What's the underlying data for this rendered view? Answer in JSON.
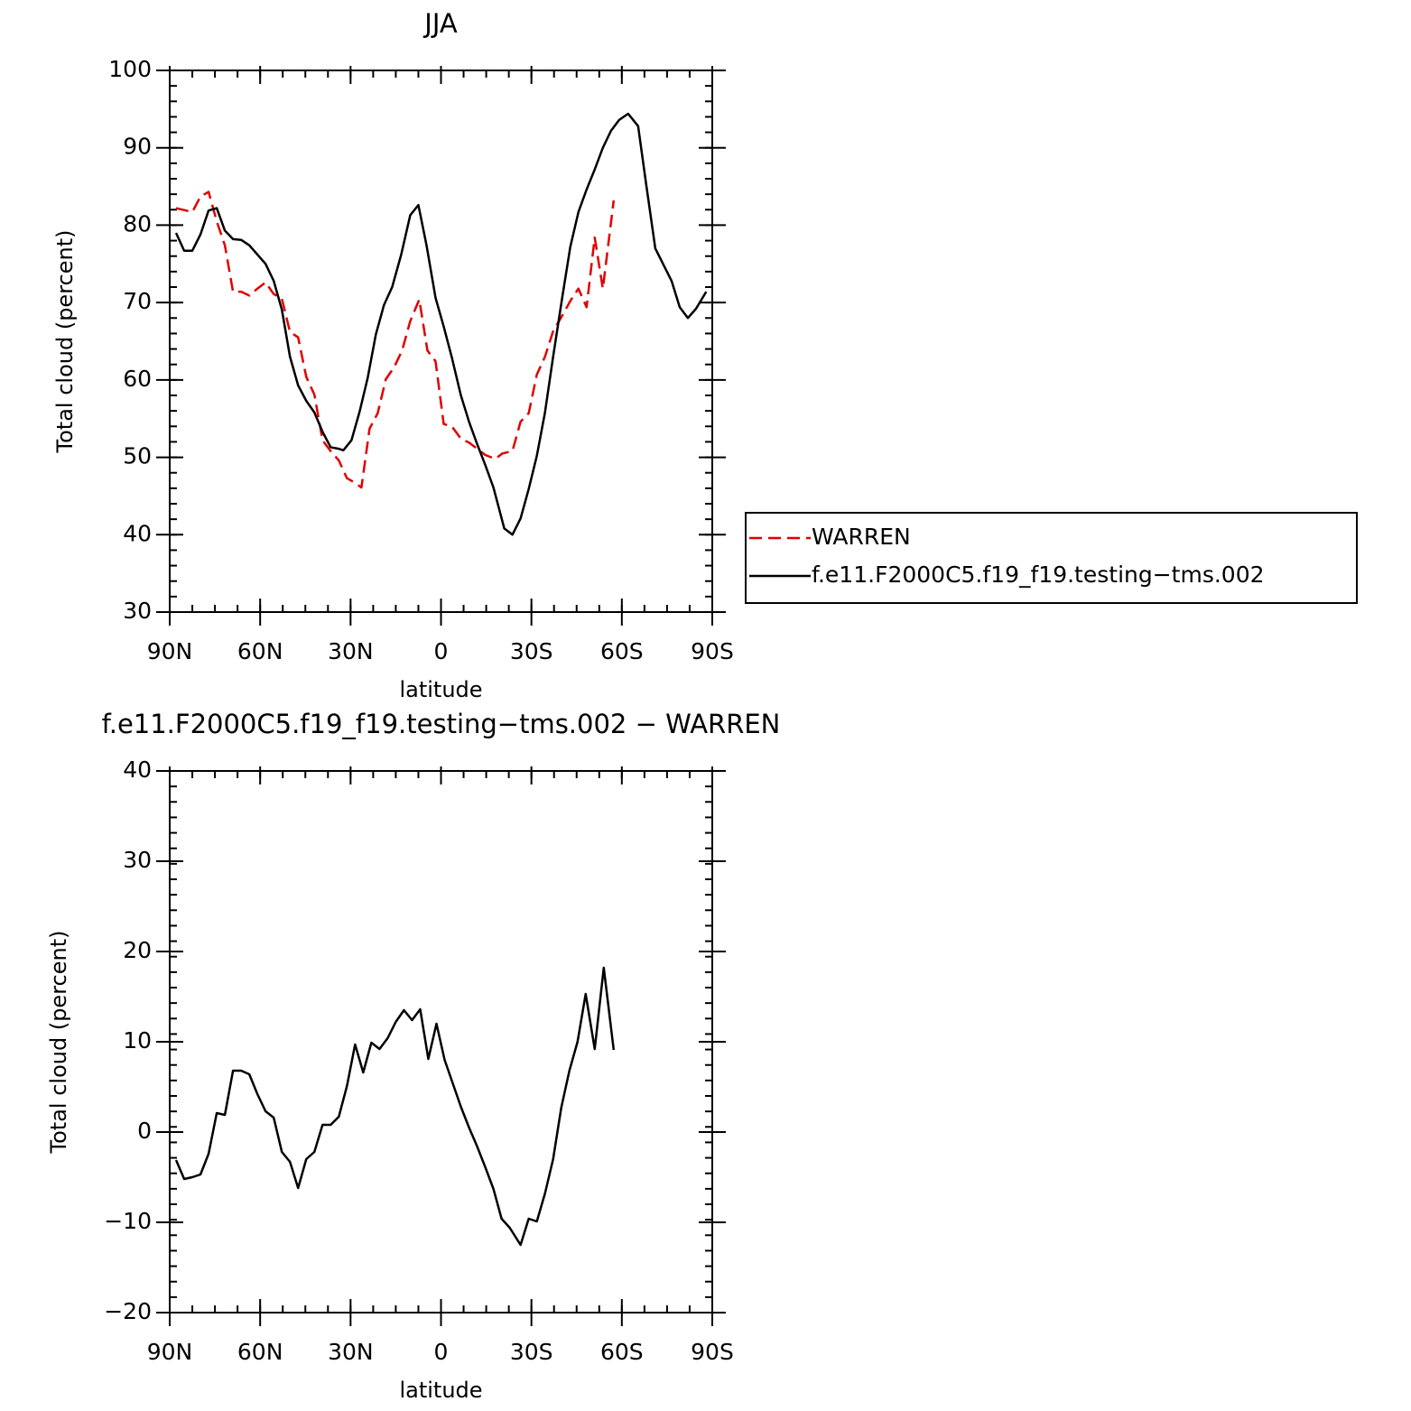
{
  "chart_data": [
    {
      "type": "line",
      "title": "JJA",
      "xlabel": "latitude",
      "ylabel": "Total cloud (percent)",
      "xlim": [
        90,
        -90
      ],
      "ylim": [
        30,
        100
      ],
      "xticks": [
        {
          "value": 90,
          "label": "90N"
        },
        {
          "value": 60,
          "label": "60N"
        },
        {
          "value": 30,
          "label": "30N"
        },
        0,
        {
          "value": -30,
          "label": "30S"
        },
        {
          "value": -60,
          "label": "60S"
        },
        {
          "value": -90,
          "label": "90S"
        }
      ],
      "yticks": [
        30,
        40,
        50,
        60,
        70,
        80,
        90,
        100
      ],
      "legend": "right",
      "series": [
        {
          "name": "WARREN",
          "color": "#e00000",
          "dash": true,
          "x": [
            87.9,
            82.5,
            79.8,
            77.1,
            74.4,
            71.7,
            69.0,
            66.3,
            63.6,
            60.9,
            58.2,
            55.5,
            52.8,
            50.1,
            47.4,
            44.7,
            42.0,
            39.3,
            36.6,
            33.9,
            31.2,
            28.5,
            26.4,
            23.7,
            21.0,
            18.3,
            15.6,
            12.9,
            10.2,
            7.2,
            4.5,
            1.8,
            -0.9,
            -3.6,
            -6.6,
            -9.3,
            -12.0,
            -14.7,
            -18.0,
            -20.4,
            -23.7,
            -26.4,
            -29.1,
            -31.8,
            -34.5,
            -37.2,
            -40.2,
            -42.9,
            -45.6,
            -48.3,
            -51.0,
            -53.7,
            -57.3
          ],
          "values": [
            82.2,
            81.7,
            83.7,
            84.3,
            80.5,
            77.4,
            71.4,
            71.4,
            70.9,
            71.8,
            72.6,
            71.1,
            70.5,
            66.2,
            65.5,
            60.4,
            58.1,
            52.2,
            50.8,
            49.6,
            47.3,
            46.7,
            46.1,
            53.7,
            55.7,
            60.1,
            61.6,
            63.8,
            67.6,
            70.4,
            63.8,
            62.4,
            54.3,
            54.0,
            52.4,
            51.9,
            51.1,
            50.3,
            49.8,
            50.5,
            50.8,
            54.6,
            55.7,
            60.7,
            63.0,
            66.3,
            68.3,
            70.2,
            71.8,
            69.4,
            78.4,
            71.8,
            83.2
          ]
        },
        {
          "name": "f.e11.F2000C5.f19_f19.testing−tms.002",
          "color": "#000000",
          "dash": false,
          "x": [
            87.9,
            85.2,
            82.5,
            79.8,
            77.1,
            74.4,
            71.7,
            69.0,
            66.3,
            63.6,
            60.9,
            58.2,
            55.5,
            52.8,
            50.1,
            47.4,
            44.7,
            42.0,
            39.3,
            36.6,
            33.9,
            32.4,
            29.7,
            27.0,
            24.3,
            21.6,
            18.9,
            16.2,
            13.2,
            10.2,
            7.5,
            4.8,
            1.8,
            -0.9,
            -3.6,
            -6.6,
            -9.3,
            -12.0,
            -14.7,
            -17.4,
            -21.0,
            -23.7,
            -26.4,
            -29.1,
            -31.8,
            -34.5,
            -37.2,
            -40.2,
            -42.9,
            -45.6,
            -48.3,
            -51.0,
            -53.7,
            -56.4,
            -59.1,
            -62.1,
            -65.4,
            -68.1,
            -71.1,
            -73.8,
            -76.5,
            -79.2,
            -81.9,
            -84.6,
            -88.0
          ],
          "values": [
            79.0,
            76.7,
            76.7,
            78.8,
            81.9,
            82.2,
            79.3,
            78.2,
            78.1,
            77.4,
            76.2,
            75.0,
            72.8,
            69.1,
            63.0,
            59.3,
            57.3,
            55.8,
            53.3,
            51.3,
            51.1,
            50.9,
            52.2,
            55.9,
            60.3,
            65.9,
            69.7,
            72.0,
            76.2,
            81.3,
            82.6,
            77.4,
            70.6,
            66.9,
            62.9,
            58.0,
            54.6,
            51.7,
            49.0,
            46.1,
            40.8,
            40.0,
            42.1,
            45.9,
            50.2,
            55.8,
            63.0,
            70.6,
            77.2,
            81.7,
            84.6,
            87.2,
            90.0,
            92.2,
            93.6,
            94.4,
            92.8,
            85.2,
            77.0,
            74.9,
            72.8,
            69.4,
            68.0,
            69.2,
            71.4
          ]
        }
      ]
    },
    {
      "type": "line",
      "title": "f.e11.F2000C5.f19_f19.testing−tms.002 − WARREN",
      "xlabel": "latitude",
      "ylabel": "Total cloud (percent)",
      "xlim": [
        90,
        -90
      ],
      "ylim": [
        -20,
        40
      ],
      "xticks": [
        {
          "value": 90,
          "label": "90N"
        },
        {
          "value": 60,
          "label": "60N"
        },
        {
          "value": 30,
          "label": "30N"
        },
        0,
        {
          "value": -30,
          "label": "30S"
        },
        {
          "value": -60,
          "label": "60S"
        },
        {
          "value": -90,
          "label": "90S"
        }
      ],
      "yticks": [
        {
          "value": -20,
          "label": "−20"
        },
        {
          "value": -10,
          "label": "−10"
        },
        0,
        10,
        20,
        30,
        40
      ],
      "series": [
        {
          "color": "#000000",
          "dash": false,
          "x": [
            87.9,
            85.2,
            82.5,
            79.8,
            77.1,
            74.4,
            71.7,
            69.0,
            66.3,
            63.6,
            60.9,
            58.2,
            55.5,
            52.8,
            50.1,
            47.4,
            44.7,
            42.0,
            39.3,
            36.6,
            33.9,
            31.2,
            28.5,
            25.8,
            23.1,
            20.4,
            17.7,
            15.0,
            12.3,
            9.6,
            6.9,
            4.2,
            1.5,
            -1.2,
            -3.9,
            -6.6,
            -9.3,
            -12.0,
            -14.7,
            -17.4,
            -20.1,
            -22.8,
            -26.4,
            -29.1,
            -31.8,
            -34.5,
            -37.2,
            -39.9,
            -42.6,
            -45.3,
            -48.0,
            -51.0,
            -54.0,
            -57.3
          ],
          "values": [
            -3.1,
            -5.2,
            -5.0,
            -4.7,
            -2.4,
            2.1,
            1.9,
            6.8,
            6.8,
            6.4,
            4.2,
            2.3,
            1.6,
            -2.2,
            -3.3,
            -6.2,
            -3.0,
            -2.2,
            0.8,
            0.8,
            1.7,
            5.1,
            9.7,
            6.6,
            9.9,
            9.2,
            10.4,
            12.2,
            13.5,
            12.4,
            13.6,
            8.1,
            12.0,
            8.0,
            5.4,
            2.8,
            0.5,
            -1.6,
            -3.9,
            -6.3,
            -9.6,
            -10.6,
            -12.5,
            -9.6,
            -9.9,
            -6.8,
            -3.0,
            2.7,
            6.8,
            10.0,
            15.3,
            9.2,
            18.2,
            9.1
          ]
        }
      ]
    }
  ]
}
